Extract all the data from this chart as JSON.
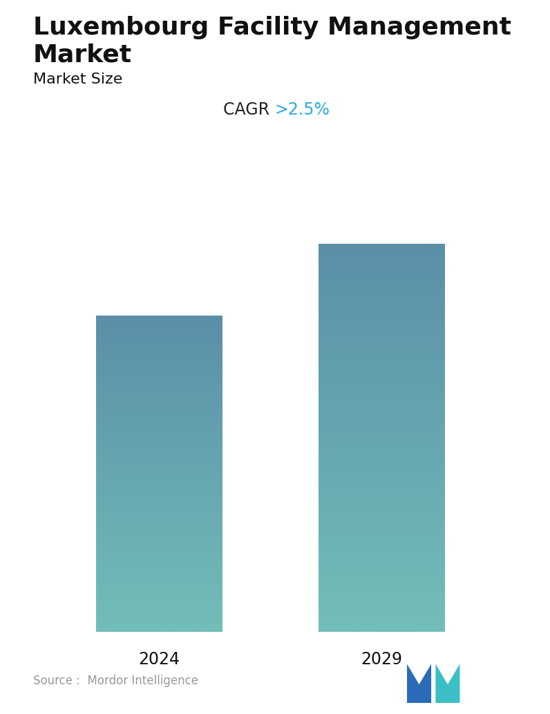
{
  "title_line1": "Luxembourg Facility Management",
  "title_line2": "Market",
  "subtitle": "Market Size",
  "cagr_label": "CAGR ",
  "cagr_value": ">2.5%",
  "categories": [
    "2024",
    "2029"
  ],
  "values": [
    0.75,
    0.92
  ],
  "bar_top_color": "#5B8FA8",
  "bar_bottom_color": "#72BEB8",
  "source_text": "Source :  Mordor Intelligence",
  "background_color": "#ffffff",
  "title_fontsize": 26,
  "subtitle_fontsize": 16,
  "cagr_fontsize": 17,
  "tick_fontsize": 17,
  "source_fontsize": 12,
  "cagr_color": "#29ABE2",
  "cagr_label_color": "#222222",
  "source_color": "#999999"
}
